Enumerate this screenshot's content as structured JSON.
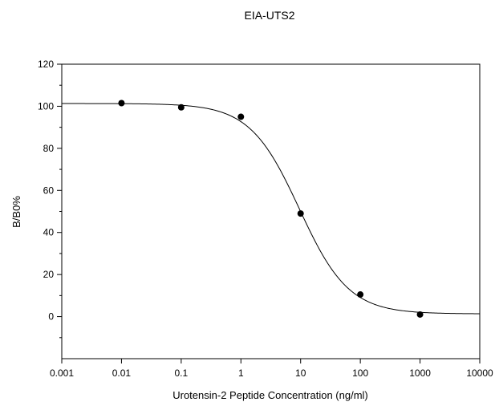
{
  "chart_data": {
    "type": "scatter",
    "title": "EIA-UTS2",
    "xlabel": "Urotensin-2 Peptide Concentration (ng/ml)",
    "ylabel": "B/B0%",
    "x_scale": "log",
    "xlim": [
      0.001,
      10000
    ],
    "ylim": [
      -20,
      120
    ],
    "x_ticks": [
      0.001,
      0.01,
      0.1,
      1,
      10,
      100,
      1000,
      10000
    ],
    "x_tick_labels": [
      "0.001",
      "0.01",
      "0.1",
      "1",
      "10",
      "100",
      "1000",
      "10000"
    ],
    "y_ticks": [
      0,
      20,
      40,
      60,
      80,
      100,
      120
    ],
    "y_tick_labels": [
      "0",
      "20",
      "40",
      "60",
      "80",
      "100",
      "120"
    ],
    "grid": false,
    "legend": "none",
    "series": [
      {
        "marker": "filled-circle",
        "color": "#000000",
        "x": [
          0.01,
          0.1,
          1,
          10,
          100,
          1000
        ],
        "y": [
          101.5,
          99.5,
          95,
          49,
          10.5,
          1
        ]
      }
    ],
    "fit_curve": {
      "model": "4-parameter logistic",
      "top": 101.3,
      "bottom": 1.3,
      "ec50": 9.5,
      "hill": 1.05,
      "color": "#000000"
    }
  }
}
